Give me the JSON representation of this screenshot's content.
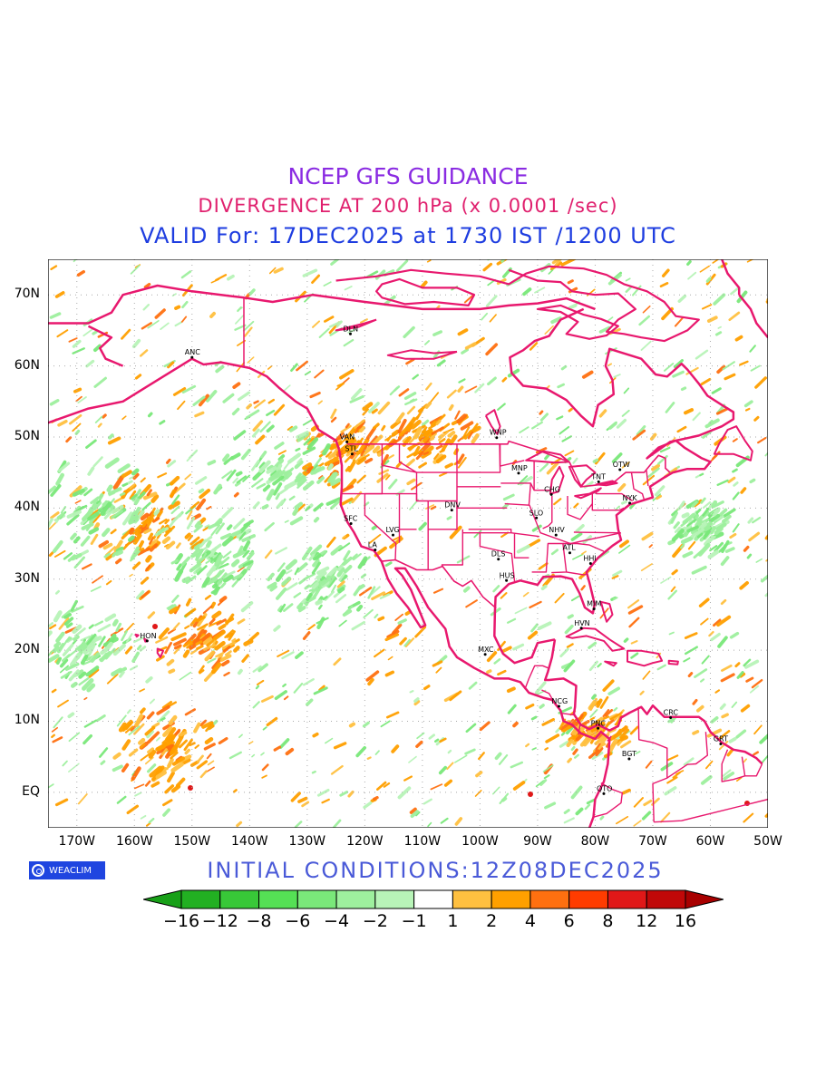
{
  "header": {
    "title": "NCEP GFS GUIDANCE",
    "subtitle": "DIVERGENCE AT 200 hPa (x 0.0001 /sec)",
    "valid": "VALID For: 17DEC2025 at 1730 IST /1200 UTC"
  },
  "colors": {
    "title": "#8a2be2",
    "subtitle": "#e0206e",
    "valid": "#1e3de0",
    "coast": "#e8186e",
    "initial": "#4a5ad8",
    "badge": "#1f45e0"
  },
  "map": {
    "projection": "lat-lon",
    "lon_range": [
      -175,
      -50
    ],
    "lat_range": [
      -5,
      75
    ],
    "grid": "dotted",
    "lat_labels": [
      "70N",
      "60N",
      "50N",
      "40N",
      "30N",
      "20N",
      "10N",
      "EQ"
    ],
    "lon_labels": [
      "170W",
      "160W",
      "150W",
      "140W",
      "130W",
      "120W",
      "110W",
      "100W",
      "90W",
      "80W",
      "70W",
      "60W",
      "50W"
    ],
    "cities": [
      {
        "label": "DLN",
        "lon": -122.5,
        "lat": 64.5
      },
      {
        "label": "ANC",
        "lon": -150,
        "lat": 61.2
      },
      {
        "label": "VAN",
        "lon": -123.1,
        "lat": 49.3
      },
      {
        "label": "STL",
        "lon": -122.2,
        "lat": 47.6
      },
      {
        "label": "WNP",
        "lon": -97.1,
        "lat": 49.9
      },
      {
        "label": "MNP",
        "lon": -93.3,
        "lat": 44.9
      },
      {
        "label": "TNT",
        "lon": -79.4,
        "lat": 43.7
      },
      {
        "label": "OTW",
        "lon": -75.7,
        "lat": 45.4
      },
      {
        "label": "CHG",
        "lon": -87.6,
        "lat": 41.9
      },
      {
        "label": "NYK",
        "lon": -74,
        "lat": 40.7
      },
      {
        "label": "DNV",
        "lon": -104.9,
        "lat": 39.7
      },
      {
        "label": "SFC",
        "lon": -122.4,
        "lat": 37.8
      },
      {
        "label": "SLO",
        "lon": -90.2,
        "lat": 38.6
      },
      {
        "label": "LVG",
        "lon": -115.1,
        "lat": 36.2
      },
      {
        "label": "NHV",
        "lon": -86.8,
        "lat": 36.2
      },
      {
        "label": "LA",
        "lon": -118.2,
        "lat": 34.1
      },
      {
        "label": "ATL",
        "lon": -84.4,
        "lat": 33.7
      },
      {
        "label": "DLS",
        "lon": -96.8,
        "lat": 32.8
      },
      {
        "label": "HHI",
        "lon": -80.8,
        "lat": 32.2
      },
      {
        "label": "HUS",
        "lon": -95.4,
        "lat": 29.8
      },
      {
        "label": "MIM",
        "lon": -80.2,
        "lat": 25.8
      },
      {
        "label": "HVN",
        "lon": -82.4,
        "lat": 23.1
      },
      {
        "label": "HON",
        "lon": -157.8,
        "lat": 21.3
      },
      {
        "label": "MXC",
        "lon": -99.1,
        "lat": 19.4
      },
      {
        "label": "NCG",
        "lon": -86.3,
        "lat": 12.1
      },
      {
        "label": "CRC",
        "lon": -66.9,
        "lat": 10.5
      },
      {
        "label": "PNC",
        "lon": -79.5,
        "lat": 9.0
      },
      {
        "label": "GRT",
        "lon": -58.2,
        "lat": 6.8
      },
      {
        "label": "BGT",
        "lon": -74.1,
        "lat": 4.7
      },
      {
        "label": "QTO",
        "lon": -78.5,
        "lat": -0.2
      }
    ]
  },
  "branding": {
    "badge": "WEACLIM",
    "badge_icon": "weaclim-logo-icon"
  },
  "initial_conditions": "INITIAL  CONDITIONS:12Z08DEC2025",
  "colorbar": {
    "labels": [
      "−16",
      "−12",
      "−8",
      "−6",
      "−4",
      "−2",
      "−1",
      "1",
      "2",
      "4",
      "6",
      "8",
      "12",
      "16"
    ],
    "colors": [
      "#18a018",
      "#22b022",
      "#38c838",
      "#55e055",
      "#7ae87a",
      "#9ef09e",
      "#b8f4b8",
      "#ffffff",
      "#ffc040",
      "#ffa000",
      "#ff7010",
      "#ff3c00",
      "#e01818",
      "#c00808",
      "#a80000"
    ]
  }
}
